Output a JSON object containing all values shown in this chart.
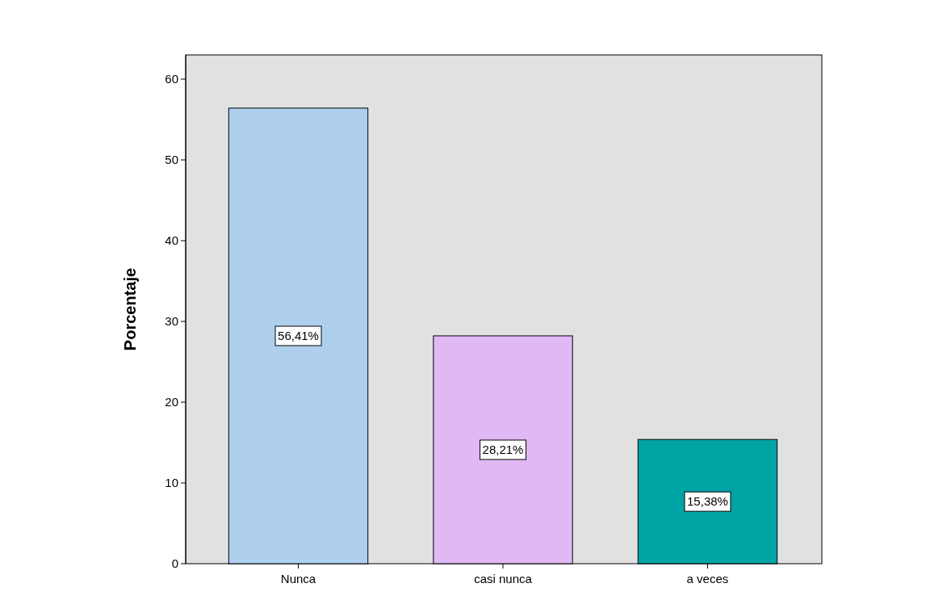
{
  "chart_data": {
    "type": "bar",
    "ylabel": "Porcentaje",
    "categories": [
      "Nunca",
      "casi nunca",
      "a veces"
    ],
    "values": [
      56.41,
      28.21,
      15.38
    ],
    "colors": [
      "#aed0ee",
      "#dfb8f4",
      "#00a4a4"
    ],
    "value_labels": [
      "56,41%",
      "28,21%",
      "15,38%"
    ],
    "ylim": [
      0,
      63
    ],
    "yticks": [
      0,
      10,
      20,
      30,
      40,
      50,
      60
    ],
    "grid": false
  }
}
